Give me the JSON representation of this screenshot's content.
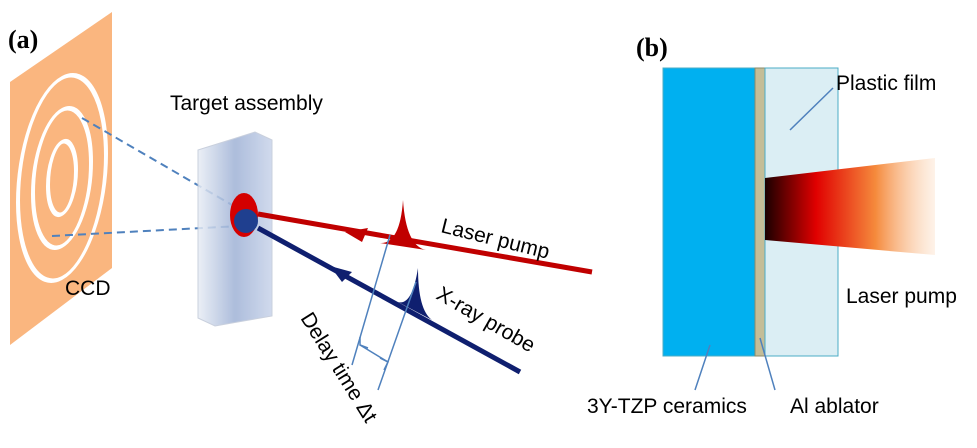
{
  "panel_a": {
    "label": "(a)",
    "target_label": "Target assembly",
    "ccd_label": "CCD",
    "laser_label": "Laser pump",
    "xray_label": "X-ray probe",
    "delay_label": "Delay time Δt"
  },
  "panel_b": {
    "label": "(b)",
    "film_label": "Plastic film",
    "ceramics_label": "3Y-TZP ceramics",
    "ablator_label": "Al ablator",
    "laser_label": "Laser pump"
  }
}
